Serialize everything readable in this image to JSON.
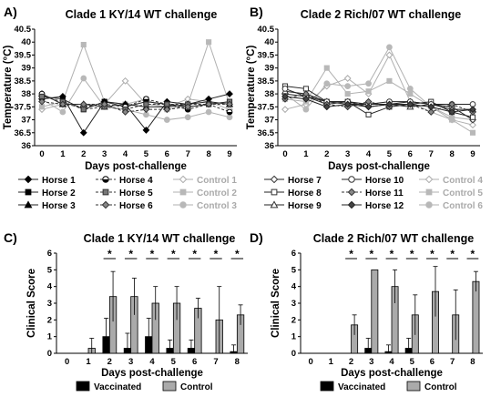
{
  "chart_data": [
    {
      "panel": "A)",
      "type": "line",
      "title": "Clade 1 KY/14 WT challenge",
      "xlabel": "Days post-challenge",
      "ylabel": "Temperature (°C)",
      "x": [
        0,
        1,
        2,
        3,
        4,
        5,
        6,
        7,
        8,
        9
      ],
      "ylim": [
        36,
        40.5
      ],
      "yticks": [
        36,
        36.5,
        37,
        37.5,
        38,
        38.5,
        39,
        39.5,
        40,
        40.5
      ],
      "series": [
        {
          "name": "Horse 1",
          "group": "vaccinated",
          "marker": "diamond-filled",
          "values": [
            37.8,
            37.9,
            36.5,
            37.7,
            37.6,
            36.6,
            37.7,
            37.6,
            37.8,
            38.0
          ]
        },
        {
          "name": "Horse 2",
          "group": "vaccinated",
          "marker": "square-filled",
          "values": [
            37.9,
            37.8,
            37.4,
            37.7,
            37.5,
            37.7,
            37.6,
            37.5,
            37.6,
            37.7
          ]
        },
        {
          "name": "Horse 3",
          "group": "vaccinated",
          "marker": "triangle-filled",
          "values": [
            38.0,
            37.6,
            37.6,
            37.5,
            37.6,
            37.5,
            37.5,
            37.6,
            37.7,
            37.6
          ]
        },
        {
          "name": "Horse 4",
          "group": "vaccinated",
          "marker": "circle-half",
          "values": [
            38.0,
            37.6,
            37.5,
            37.6,
            37.5,
            37.8,
            37.6,
            37.4,
            37.6,
            37.3
          ]
        },
        {
          "name": "Horse 5",
          "group": "vaccinated",
          "marker": "square-gray",
          "values": [
            37.9,
            37.7,
            37.4,
            37.5,
            37.4,
            37.6,
            37.6,
            37.6,
            37.6,
            37.7
          ]
        },
        {
          "name": "Horse 6",
          "group": "vaccinated",
          "marker": "diamond-gray",
          "values": [
            37.7,
            37.6,
            37.6,
            37.6,
            37.3,
            37.4,
            37.4,
            37.5,
            37.6,
            37.6
          ]
        },
        {
          "name": "Control 1",
          "group": "control",
          "marker": "diamond-open",
          "values": [
            37.4,
            37.6,
            37.6,
            37.6,
            38.5,
            37.6,
            37.5,
            37.8,
            37.7,
            37.4
          ]
        },
        {
          "name": "Control 2",
          "group": "control",
          "marker": "square-light",
          "values": [
            37.5,
            37.7,
            39.9,
            37.7,
            37.6,
            37.8,
            37.4,
            37.6,
            40.0,
            37.6
          ]
        },
        {
          "name": "Control 3",
          "group": "control",
          "marker": "circle-light",
          "values": [
            37.8,
            37.3,
            38.6,
            37.5,
            37.4,
            37.2,
            37.0,
            37.1,
            37.3,
            37.1
          ]
        }
      ],
      "legend": [
        "Horse 1",
        "Horse 4",
        "Control 1",
        "Horse 2",
        "Horse 5",
        "Control 2",
        "Horse 3",
        "Horse 6",
        "Control 3"
      ]
    },
    {
      "panel": "B)",
      "type": "line",
      "title": "Clade 2 Rich/07 WT challenge",
      "xlabel": "Days post-challenge",
      "ylabel": "Temperature (°C)",
      "x": [
        0,
        1,
        2,
        3,
        4,
        5,
        6,
        7,
        8,
        9
      ],
      "ylim": [
        36,
        40.5
      ],
      "yticks": [
        36,
        36.5,
        37,
        37.5,
        38,
        38.5,
        39,
        39.5,
        40,
        40.5
      ],
      "series": [
        {
          "name": "Horse 7",
          "group": "vaccinated",
          "marker": "diamond-open-dark",
          "values": [
            38.0,
            37.9,
            37.6,
            37.7,
            37.5,
            37.6,
            37.7,
            37.6,
            37.5,
            37.0
          ]
        },
        {
          "name": "Horse 8",
          "group": "vaccinated",
          "marker": "square-open",
          "values": [
            38.3,
            38.2,
            37.7,
            37.7,
            37.2,
            37.5,
            37.6,
            37.7,
            37.3,
            37.1
          ]
        },
        {
          "name": "Horse 9",
          "group": "vaccinated",
          "marker": "triangle-open",
          "values": [
            38.1,
            38.0,
            37.7,
            37.6,
            37.6,
            37.6,
            37.5,
            37.6,
            37.4,
            37.4
          ]
        },
        {
          "name": "Horse 10",
          "group": "vaccinated",
          "marker": "circle-open",
          "values": [
            38.2,
            37.9,
            37.7,
            37.7,
            37.6,
            37.7,
            37.7,
            37.6,
            37.6,
            37.6
          ]
        },
        {
          "name": "Horse 11",
          "group": "vaccinated",
          "marker": "diamond-gray",
          "values": [
            37.8,
            38.0,
            37.6,
            37.5,
            37.7,
            37.5,
            37.6,
            37.3,
            37.6,
            37.3
          ]
        },
        {
          "name": "Horse 12",
          "group": "vaccinated",
          "marker": "diamond-dark",
          "values": [
            37.9,
            37.8,
            37.5,
            37.6,
            37.5,
            37.6,
            37.6,
            37.5,
            37.3,
            37.4
          ]
        },
        {
          "name": "Control 4",
          "group": "control",
          "marker": "diamond-open",
          "values": [
            37.4,
            37.6,
            38.3,
            38.6,
            38.0,
            39.5,
            37.7,
            37.3,
            37.0,
            36.8
          ]
        },
        {
          "name": "Control 5",
          "group": "control",
          "marker": "square-light",
          "values": [
            37.8,
            37.7,
            39.0,
            38.0,
            38.1,
            38.5,
            38.0,
            37.5,
            37.0,
            36.5
          ]
        },
        {
          "name": "Control 6",
          "group": "control",
          "marker": "circle-light",
          "values": [
            38.0,
            37.4,
            38.4,
            38.3,
            38.4,
            39.8,
            38.2,
            37.5,
            37.1,
            37.0
          ]
        }
      ],
      "legend": [
        "Horse 7",
        "Horse 10",
        "Control 4",
        "Horse 8",
        "Horse 11",
        "Control 5",
        "Horse 9",
        "Horse 12",
        "Control 6"
      ]
    },
    {
      "panel": "C)",
      "type": "bar",
      "title": "Clade 1 KY/14 WT challenge",
      "xlabel": "Days post-challenge",
      "ylabel": "Clinical Score",
      "categories": [
        "0",
        "1",
        "2",
        "3",
        "4",
        "5",
        "6",
        "7",
        "8"
      ],
      "ylim": [
        0,
        6
      ],
      "yticks": [
        0,
        1,
        2,
        3,
        4,
        5,
        6
      ],
      "series": [
        {
          "name": "Vaccinated",
          "color": "#000000",
          "values": [
            0,
            0,
            1.0,
            0.3,
            1.0,
            0.3,
            0.3,
            0,
            0.1
          ],
          "errors": [
            0,
            0,
            1.1,
            0.9,
            1.1,
            0.5,
            0.5,
            0,
            0.4
          ]
        },
        {
          "name": "Control",
          "color": "#aaaaaa",
          "values": [
            0,
            0.3,
            3.4,
            3.4,
            3.0,
            3.0,
            2.7,
            2.0,
            2.3
          ],
          "errors": [
            0,
            0.6,
            1.5,
            1.1,
            1.0,
            1.0,
            0.6,
            2.0,
            0.6
          ]
        }
      ],
      "significance": [
        "",
        "",
        "*",
        "*",
        "*",
        "*",
        "*",
        "*",
        "*"
      ]
    },
    {
      "panel": "D)",
      "type": "bar",
      "title": "Clade 2 Rich/07 WT challenge",
      "xlabel": "Days post-challenge",
      "ylabel": "Clinical Score",
      "categories": [
        "0",
        "1",
        "2",
        "3",
        "4",
        "5",
        "6",
        "7",
        "8"
      ],
      "ylim": [
        0,
        6
      ],
      "yticks": [
        0,
        1,
        2,
        3,
        4,
        5,
        6
      ],
      "series": [
        {
          "name": "Vaccinated",
          "color": "#000000",
          "values": [
            0,
            0,
            0,
            0.3,
            0.1,
            0.3,
            0,
            0,
            0
          ],
          "errors": [
            0,
            0,
            0,
            0.6,
            0.4,
            0.6,
            0,
            0,
            0
          ]
        },
        {
          "name": "Control",
          "color": "#aaaaaa",
          "values": [
            0,
            0,
            1.7,
            5.0,
            4.0,
            2.3,
            3.7,
            2.3,
            4.3
          ],
          "errors": [
            0,
            0,
            0.6,
            0,
            1.0,
            1.2,
            1.5,
            1.5,
            0.6
          ]
        }
      ],
      "significance": [
        "",
        "",
        "*",
        "*",
        "*",
        "*",
        "*",
        "*",
        "*"
      ]
    }
  ]
}
